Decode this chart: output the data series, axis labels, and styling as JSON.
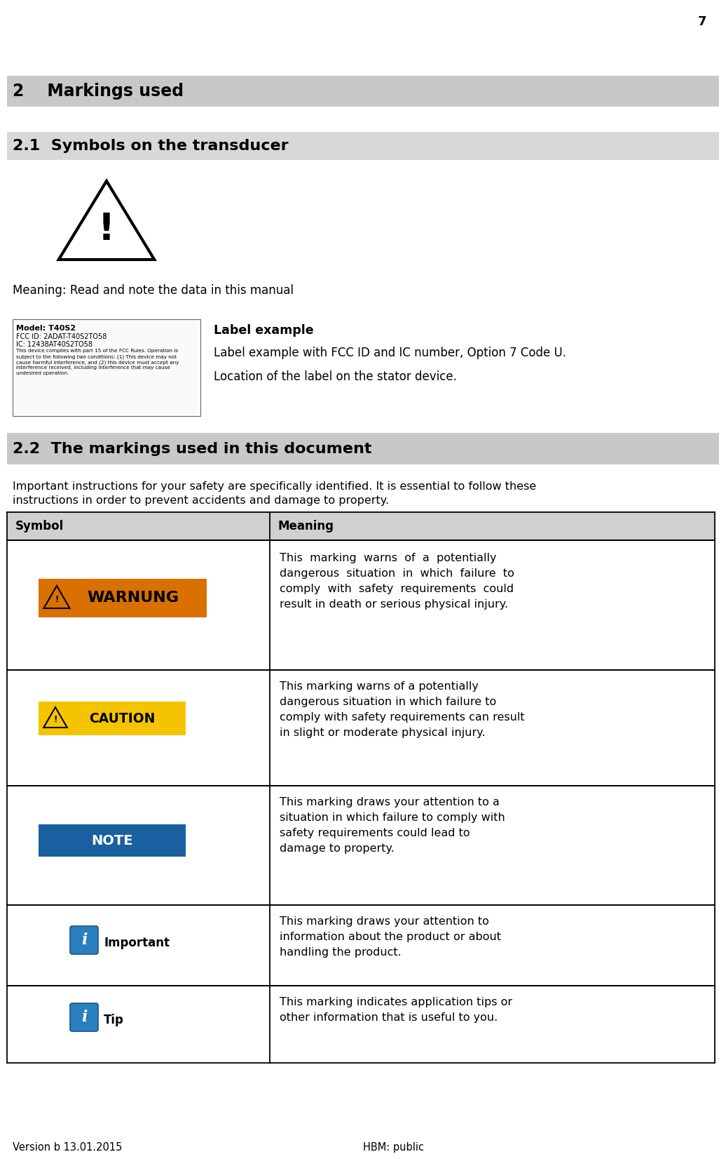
{
  "page_number": "7",
  "bg_color": "#ffffff",
  "section2_title": "2    Markings used",
  "section2_bg": "#c8c8c8",
  "section21_title": "2.1  Symbols on the transducer",
  "section21_bg": "#d8d8d8",
  "meaning_text": "Meaning: Read and note the data in this manual",
  "label_example_title": "Label example",
  "label_example_line1": "Label example with FCC ID and IC number, Option 7 Code U.",
  "label_example_line2": "Location of the label on the stator device.",
  "section22_title": "2.2  The markings used in this document",
  "section22_bg": "#c8c8c8",
  "intro_line1": "Important instructions for your safety are specifically identified. It is essential to follow these",
  "intro_line2": "instructions in order to prevent accidents and damage to property.",
  "table_header_symbol": "Symbol",
  "table_header_meaning": "Meaning",
  "table_header_bg": "#d0d0d0",
  "warnung_color": "#d97000",
  "warnung_text": "WARNUNG",
  "warnung_meaning_line1": "This  marking  warns  of  a  potentially",
  "warnung_meaning_line2": "dangerous  situation  in  which  failure  to",
  "warnung_meaning_line3": "comply  with  safety  requirements  could",
  "warnung_meaning_line4": "result in death or serious physical injury.",
  "caution_color": "#f5c400",
  "caution_text": "CAUTION",
  "caution_meaning_line1": "This marking warns of a potentially",
  "caution_meaning_line2": "dangerous situation in which failure to",
  "caution_meaning_line3": "comply with safety requirements can result",
  "caution_meaning_line4": "in slight or moderate physical injury.",
  "note_color": "#1a5fa0",
  "note_text": "NOTE",
  "note_meaning_line1": "This marking draws your attention to a",
  "note_meaning_line2": "situation in which failure to comply with",
  "note_meaning_line3": "safety requirements could lead to",
  "note_meaning_line4": "damage to property.",
  "important_text": "Important",
  "important_meaning_line1": "This marking draws your attention to",
  "important_meaning_line2": "information about the product or about",
  "important_meaning_line3": "handling the product.",
  "tip_text": "Tip",
  "tip_meaning_line1": "This marking indicates application tips or",
  "tip_meaning_line2": "other information that is useful to you.",
  "info_icon_color": "#2a7fbf",
  "footer_left": "Version b 13.01.2015",
  "footer_right": "HBM: public",
  "font_color": "#000000",
  "label_lines": [
    "Model: T40S2",
    "FCC ID: 2ADAT-T40S2TO58",
    "IC: 12438AT40S2TO58",
    "This device complies with part 15 of the FCC Rules. Operation is",
    "subject to the following two conditions: (1) This device may not",
    "cause harmful interference, and (2) this device must accept any",
    "interference received, including interference that may cause",
    "undesired operation."
  ]
}
